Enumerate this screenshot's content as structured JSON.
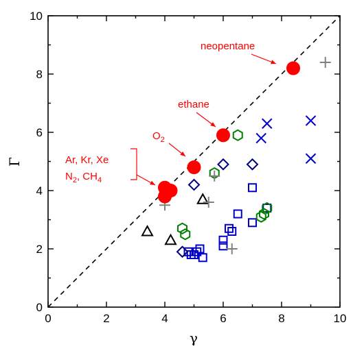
{
  "colors": {
    "red": "#ff0000",
    "blue": "#0000cc",
    "navy": "#000080",
    "green": "#008000",
    "black": "#000000",
    "gray": "#808080"
  },
  "chart_data": {
    "type": "scatter",
    "title": "",
    "xlabel": "γ",
    "ylabel": "Γ",
    "xlim": [
      0,
      10
    ],
    "ylim": [
      0,
      10
    ],
    "xticks": [
      "0",
      "2",
      "4",
      "6",
      "8",
      "10"
    ],
    "yticks": [
      "0",
      "2",
      "4",
      "6",
      "8",
      "10"
    ],
    "grid": false,
    "reference_line": {
      "style": "dashed",
      "points": [
        [
          0,
          0
        ],
        [
          10,
          10
        ]
      ]
    },
    "series": [
      {
        "marker": "filled-circle",
        "color": "#ff0000",
        "points": [
          [
            4.0,
            4.1
          ],
          [
            4.1,
            4.0
          ],
          [
            4.2,
            4.0
          ],
          [
            4.0,
            3.8
          ],
          [
            5.0,
            4.8
          ],
          [
            6.0,
            5.9
          ],
          [
            8.4,
            8.2
          ]
        ]
      },
      {
        "marker": "open-square",
        "color": "#0000cc",
        "points": [
          [
            4.8,
            1.9
          ],
          [
            4.9,
            1.8
          ],
          [
            5.0,
            1.8
          ],
          [
            5.1,
            1.9
          ],
          [
            5.2,
            2.0
          ],
          [
            5.3,
            1.7
          ],
          [
            6.0,
            2.1
          ],
          [
            6.0,
            2.3
          ],
          [
            6.2,
            2.7
          ],
          [
            6.3,
            2.6
          ],
          [
            6.5,
            3.2
          ],
          [
            7.0,
            2.9
          ],
          [
            7.0,
            4.1
          ],
          [
            7.5,
            3.4
          ]
        ]
      },
      {
        "marker": "open-diamond",
        "color": "#000080",
        "points": [
          [
            4.6,
            1.9
          ],
          [
            5.0,
            4.2
          ],
          [
            6.0,
            4.9
          ],
          [
            7.0,
            4.9
          ]
        ]
      },
      {
        "marker": "open-hexagon",
        "color": "#008000",
        "points": [
          [
            4.6,
            2.7
          ],
          [
            4.7,
            2.5
          ],
          [
            5.7,
            4.6
          ],
          [
            6.5,
            5.9
          ],
          [
            7.3,
            3.1
          ],
          [
            7.4,
            3.2
          ],
          [
            7.5,
            3.4
          ]
        ]
      },
      {
        "marker": "open-triangle",
        "color": "#000000",
        "points": [
          [
            3.4,
            2.6
          ],
          [
            4.2,
            2.3
          ],
          [
            5.3,
            3.7
          ]
        ]
      },
      {
        "marker": "x",
        "color": "#0000cc",
        "points": [
          [
            7.3,
            5.8
          ],
          [
            7.5,
            6.3
          ],
          [
            9.0,
            6.4
          ],
          [
            9.0,
            5.1
          ]
        ]
      },
      {
        "marker": "plus",
        "color": "#808080",
        "points": [
          [
            4.0,
            3.5
          ],
          [
            5.5,
            3.6
          ],
          [
            5.7,
            4.5
          ],
          [
            6.3,
            2.0
          ],
          [
            9.5,
            8.4
          ]
        ]
      }
    ],
    "annotations": [
      {
        "text": "neopentane",
        "color": "#ff0000"
      },
      {
        "text": "ethane",
        "color": "#ff0000"
      },
      {
        "text": "O",
        "sub": "2",
        "color": "#ff0000"
      },
      {
        "text": "Ar, Kr, Xe",
        "color": "#ff0000"
      },
      {
        "text": "N",
        "sub": "2",
        "text2": ", CH",
        "sub2": "4",
        "color": "#ff0000"
      }
    ]
  }
}
